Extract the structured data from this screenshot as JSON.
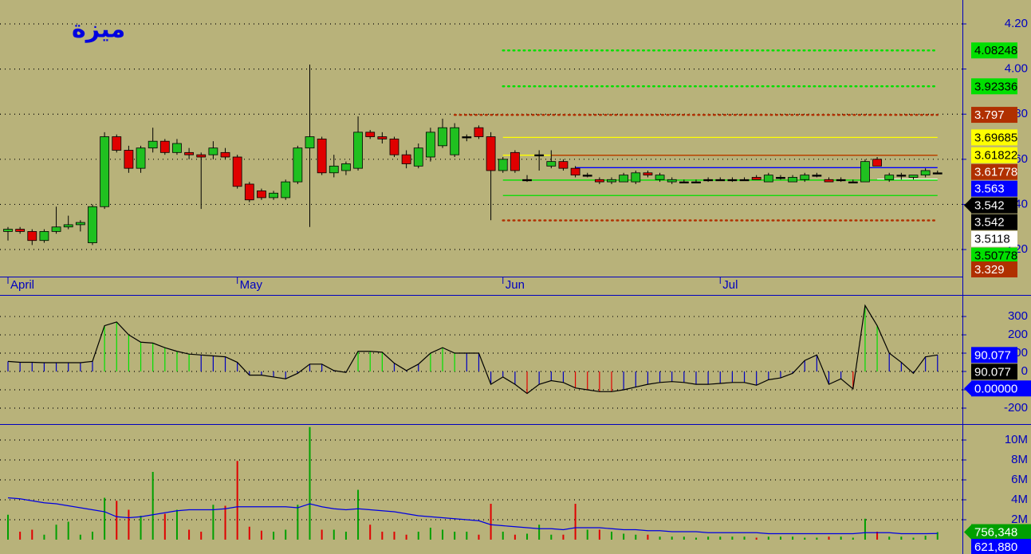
{
  "chart_data": [
    {
      "type": "candlestick",
      "title": "ميزة",
      "categories": [
        "April",
        null,
        null,
        null,
        null,
        null,
        null,
        null,
        null,
        null,
        null,
        null,
        null,
        null,
        null,
        null,
        null,
        null,
        null,
        "May",
        null,
        null,
        null,
        null,
        null,
        null,
        null,
        null,
        null,
        null,
        null,
        null,
        null,
        null,
        null,
        null,
        null,
        null,
        null,
        null,
        null,
        "Jun",
        null,
        null,
        null,
        null,
        null,
        null,
        null,
        null,
        null,
        null,
        null,
        null,
        null,
        null,
        null,
        null,
        null,
        "Jul",
        null,
        null,
        null,
        null,
        null,
        null,
        null,
        null,
        null,
        null,
        null,
        null,
        null,
        null,
        null,
        null,
        null,
        null
      ],
      "open": [
        3.28,
        3.29,
        3.28,
        3.24,
        3.28,
        3.3,
        3.31,
        3.23,
        3.39,
        3.7,
        3.64,
        3.56,
        3.65,
        3.68,
        3.63,
        3.63,
        3.62,
        3.62,
        3.63,
        3.61,
        3.49,
        3.46,
        3.43,
        3.43,
        3.5,
        3.65,
        3.69,
        3.54,
        3.55,
        3.56,
        3.72,
        3.7,
        3.69,
        3.62,
        3.57,
        3.61,
        3.66,
        3.62,
        3.7,
        3.74,
        3.7,
        3.55,
        3.63,
        3.51,
        3.62,
        3.57,
        3.59,
        3.56,
        3.53,
        3.51,
        3.5,
        3.5,
        3.5,
        3.54,
        3.51,
        3.5,
        3.5,
        3.5,
        3.51,
        3.51,
        3.51,
        3.51,
        3.52,
        3.5,
        3.52,
        3.5,
        3.51,
        3.53,
        3.51,
        3.51,
        3.5,
        3.5,
        3.6,
        3.51,
        3.53,
        3.52,
        3.53,
        3.54
      ],
      "high": [
        3.3,
        3.3,
        3.29,
        3.29,
        3.39,
        3.35,
        3.33,
        3.4,
        3.72,
        3.71,
        3.66,
        3.66,
        3.74,
        3.69,
        3.69,
        3.65,
        3.63,
        3.68,
        3.65,
        3.62,
        3.5,
        3.47,
        3.46,
        3.51,
        3.66,
        4.02,
        3.7,
        3.62,
        3.59,
        3.79,
        3.73,
        3.72,
        3.7,
        3.64,
        3.67,
        3.74,
        3.78,
        3.76,
        3.71,
        3.75,
        3.72,
        3.61,
        3.64,
        3.53,
        3.64,
        3.64,
        3.6,
        3.57,
        3.54,
        3.52,
        3.52,
        3.54,
        3.55,
        3.55,
        3.54,
        3.52,
        3.51,
        3.51,
        3.52,
        3.52,
        3.52,
        3.52,
        3.53,
        3.54,
        3.53,
        3.53,
        3.54,
        3.54,
        3.52,
        3.52,
        3.51,
        3.6,
        3.61,
        3.54,
        3.54,
        3.53,
        3.56,
        3.55
      ],
      "low": [
        3.24,
        3.27,
        3.22,
        3.23,
        3.27,
        3.29,
        3.28,
        3.22,
        3.38,
        3.63,
        3.54,
        3.54,
        3.63,
        3.62,
        3.62,
        3.6,
        3.38,
        3.6,
        3.6,
        3.47,
        3.41,
        3.42,
        3.42,
        3.42,
        3.49,
        3.3,
        3.53,
        3.52,
        3.53,
        3.55,
        3.69,
        3.67,
        3.61,
        3.56,
        3.56,
        3.59,
        3.65,
        3.61,
        3.68,
        3.69,
        3.33,
        3.54,
        3.54,
        3.5,
        3.55,
        3.56,
        3.55,
        3.52,
        3.52,
        3.49,
        3.49,
        3.5,
        3.49,
        3.52,
        3.5,
        3.49,
        3.5,
        3.5,
        3.5,
        3.51,
        3.5,
        3.51,
        3.51,
        3.5,
        3.51,
        3.5,
        3.5,
        3.52,
        3.5,
        3.5,
        3.5,
        3.5,
        3.57,
        3.5,
        3.51,
        3.51,
        3.52,
        3.54
      ],
      "close": [
        3.29,
        3.28,
        3.24,
        3.28,
        3.3,
        3.31,
        3.32,
        3.39,
        3.7,
        3.64,
        3.56,
        3.65,
        3.68,
        3.63,
        3.67,
        3.62,
        3.61,
        3.65,
        3.61,
        3.48,
        3.42,
        3.43,
        3.45,
        3.5,
        3.65,
        3.7,
        3.54,
        3.57,
        3.58,
        3.72,
        3.7,
        3.69,
        3.62,
        3.58,
        3.65,
        3.72,
        3.74,
        3.74,
        3.7,
        3.7,
        3.55,
        3.6,
        3.55,
        3.51,
        3.62,
        3.59,
        3.56,
        3.53,
        3.53,
        3.5,
        3.51,
        3.53,
        3.54,
        3.53,
        3.53,
        3.51,
        3.5,
        3.5,
        3.51,
        3.51,
        3.51,
        3.51,
        3.51,
        3.53,
        3.52,
        3.52,
        3.53,
        3.53,
        3.5,
        3.51,
        3.5,
        3.59,
        3.57,
        3.53,
        3.53,
        3.53,
        3.55,
        3.54
      ],
      "ylim": [
        3.08,
        4.306
      ],
      "yticks": [
        {
          "value": 3.2,
          "label": "3.20"
        },
        {
          "value": 3.4,
          "label": "3.40"
        },
        {
          "value": 3.6,
          "label": "3.60"
        },
        {
          "value": 3.8,
          "label": "3.80"
        },
        {
          "value": 4.0,
          "label": "4.00"
        },
        {
          "value": 4.2,
          "label": "4.20"
        }
      ],
      "grid": true,
      "levels": [
        {
          "value": 4.08248,
          "color": "#00e000",
          "text_color": "#000000",
          "start": 41,
          "dotted": true
        },
        {
          "value": 3.92336,
          "color": "#00e000",
          "text_color": "#000000",
          "start": 41,
          "dotted": true
        },
        {
          "value": 3.797,
          "color": "#b03000",
          "text_color": "#ffffff",
          "start": 37,
          "dotted": true
        },
        {
          "value": 3.69685,
          "color": "#ffff00",
          "text_color": "#000000",
          "start": 41
        },
        {
          "value": 3.61822,
          "color": "#ffff00",
          "text_color": "#000000",
          "start": 41
        },
        {
          "value": 3.61778,
          "color": "#b03000",
          "text_color": "#ffffff",
          "start": 45
        },
        {
          "value": 3.563,
          "color": "#0000ff",
          "text_color": "#ffffff",
          "start": 47
        },
        {
          "value": 3.542,
          "color": "#000000",
          "text_color": "#ffffff",
          "arrow": true
        },
        {
          "value": 3.542,
          "color": "#000000",
          "text_color": "#ffffff"
        },
        {
          "value": 3.5118,
          "color": "#ffffff",
          "text_color": "#000000",
          "start": 72
        },
        {
          "value": 3.50778,
          "color": "#00e000",
          "text_color": "#000000",
          "start": 41
        },
        {
          "value": 3.43945,
          "color": "#00e000",
          "text_color": "#000000",
          "start": 41
        },
        {
          "value": 3.329,
          "color": "#b03000",
          "text_color": "#ffffff",
          "start": 41,
          "dotted": true
        }
      ]
    },
    {
      "type": "line",
      "color": "#000000",
      "values": [
        55,
        50,
        50,
        48,
        48,
        48,
        48,
        55,
        250,
        270,
        200,
        160,
        155,
        130,
        110,
        95,
        90,
        85,
        80,
        50,
        -20,
        -20,
        -30,
        -40,
        -10,
        40,
        40,
        5,
        -5,
        110,
        110,
        105,
        45,
        5,
        40,
        100,
        130,
        100,
        100,
        100,
        -70,
        -30,
        -70,
        -120,
        -70,
        -50,
        -60,
        -90,
        -100,
        -110,
        -110,
        -100,
        -85,
        -70,
        -60,
        -55,
        -60,
        -70,
        -70,
        -65,
        -60,
        -60,
        -75,
        -45,
        -35,
        -10,
        60,
        90,
        -70,
        -40,
        -95,
        360,
        250,
        100,
        50,
        -10,
        80,
        90.077
      ],
      "bar_colors": [
        "#0000c0",
        "#0000c0",
        "#0000c0",
        "#0000c0",
        "#0000c0",
        "#0000c0",
        "#0000c0",
        "#0000c0",
        "#00e000",
        "#00e000",
        "#00e000",
        "#00e000",
        "#00e000",
        "#00e000",
        "#00e000",
        "#00e000",
        "#0000c0",
        "#0000c0",
        "#0000c0",
        "#0000c0",
        "#0000c0",
        "#0000c0",
        "#0000c0",
        "#0000c0",
        "#0000c0",
        "#0000c0",
        "#0000c0",
        "#0000c0",
        "#0000c0",
        "#00e000",
        "#00e000",
        "#00e000",
        "#0000c0",
        "#0000c0",
        "#0000c0",
        "#00e000",
        "#00e000",
        "#00e000",
        "#0000c0",
        "#0000c0",
        "#0000c0",
        "#0000c0",
        "#0000c0",
        "#e00000",
        "#0000c0",
        "#0000c0",
        "#0000c0",
        "#e00000",
        "#e00000",
        "#e00000",
        "#e00000",
        "#0000c0",
        "#0000c0",
        "#0000c0",
        "#0000c0",
        "#0000c0",
        "#0000c0",
        "#0000c0",
        "#0000c0",
        "#0000c0",
        "#0000c0",
        "#0000c0",
        "#0000c0",
        "#0000c0",
        "#0000c0",
        "#0000c0",
        "#0000c0",
        "#0000c0",
        "#0000c0",
        "#0000c0",
        "#e00000",
        "#00e000",
        "#00e000",
        "#0000c0",
        "#0000c0",
        "#0000c0",
        "#0000c0",
        "#0000c0"
      ],
      "ylim": [
        -287,
        409
      ],
      "yticks": [
        -200,
        -100,
        0,
        100,
        200,
        300
      ],
      "grid": true,
      "levels": [
        {
          "value": 90.077,
          "color": "#0000ff",
          "text_color": "#ffffff"
        },
        {
          "value": 90.077,
          "color": "#000000",
          "text_color": "#ffffff"
        },
        {
          "value": 0,
          "label": "0.00000",
          "color": "#0000ff",
          "text_color": "#ffffff",
          "arrow": true
        }
      ]
    },
    {
      "type": "bar",
      "up_color": "#00a000",
      "down_color": "#e00000",
      "ma_color": "#0000e0",
      "values": [
        2500000,
        800000,
        1000000,
        500000,
        1500000,
        1800000,
        500000,
        800000,
        4200000,
        3900000,
        3000000,
        2400000,
        6800000,
        2600000,
        3000000,
        1000000,
        800000,
        3500000,
        3400000,
        7900000,
        1300000,
        900000,
        800000,
        1000000,
        3500000,
        11300000,
        1000000,
        1000000,
        800000,
        5000000,
        1500000,
        800000,
        800000,
        500000,
        800000,
        1200000,
        1000000,
        800000,
        800000,
        500000,
        3600000,
        800000,
        500000,
        600000,
        1500000,
        500000,
        500000,
        3600000,
        1000000,
        1000000,
        800000,
        600000,
        500000,
        500000,
        300000,
        300000,
        300000,
        200000,
        300000,
        300000,
        300000,
        300000,
        200000,
        300000,
        300000,
        300000,
        200000,
        200000,
        300000,
        300000,
        200000,
        2100000,
        800000,
        300000,
        300000,
        200000,
        400000,
        756348
      ],
      "ma": [
        4200000,
        4100000,
        3900000,
        3700000,
        3600000,
        3400000,
        3200000,
        3000000,
        2800000,
        2300000,
        2200000,
        2300000,
        2500000,
        2700000,
        2900000,
        3000000,
        3000000,
        3000000,
        3100000,
        3300000,
        3300000,
        3300000,
        3300000,
        3300000,
        3200000,
        3600000,
        3300000,
        3100000,
        3000000,
        3100000,
        3000000,
        2900000,
        2800000,
        2600000,
        2400000,
        2300000,
        2200000,
        2100000,
        2000000,
        1900000,
        1500000,
        1400000,
        1300000,
        1200000,
        1100000,
        1100000,
        1000000,
        1200000,
        1200000,
        1200000,
        1100000,
        1000000,
        1000000,
        900000,
        900000,
        800000,
        800000,
        800000,
        700000,
        700000,
        700000,
        700000,
        700000,
        600000,
        600000,
        600000,
        600000,
        600000,
        600000,
        600000,
        600000,
        700000,
        700000,
        700000,
        600000,
        600000,
        600000,
        621880
      ],
      "ylim": [
        -1440000,
        11360000
      ],
      "yticks": [
        {
          "value": 2000000,
          "label": "2M"
        },
        {
          "value": 4000000,
          "label": "4M"
        },
        {
          "value": 6000000,
          "label": "6M"
        },
        {
          "value": 8000000,
          "label": "8M"
        },
        {
          "value": 10000000,
          "label": "10M"
        }
      ],
      "levels": [
        {
          "value": 756348,
          "label": "756,348",
          "color": "#00a000",
          "text_color": "#ffffff",
          "arrow": true
        },
        {
          "value": 621880,
          "label": "621,880",
          "color": "#0000ff",
          "text_color": "#ffffff"
        }
      ]
    }
  ]
}
